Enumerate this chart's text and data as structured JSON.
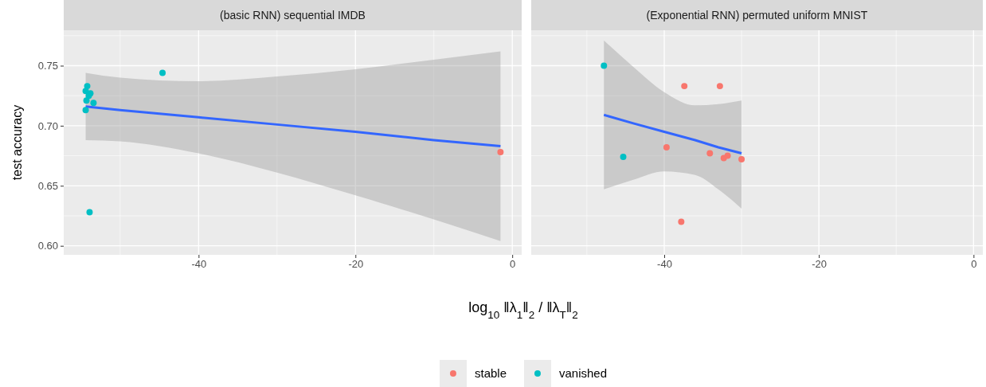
{
  "chart_data": [
    {
      "type": "scatter",
      "title": "(basic RNN) sequential IMDB",
      "xlabel": "log$_{10}$ ‖λ$_{1}$‖$_{2}$ / ‖λ$_{T}$‖$_{2}$",
      "ylabel": "test accuracy",
      "xlim": [
        -57.2,
        1.2
      ],
      "xticks": [
        -40,
        -20,
        0
      ],
      "ylim": [
        0.5925,
        0.7795
      ],
      "yticks": [
        {
          "value": 0.6,
          "label": "0.60"
        },
        {
          "value": 0.65,
          "label": "0.65"
        },
        {
          "value": 0.7,
          "label": "0.70"
        },
        {
          "value": 0.75,
          "label": "0.75"
        }
      ],
      "grid": true,
      "legend": "bottom",
      "series": [
        {
          "name": "stable",
          "color": "#f8766d",
          "marker": "circle",
          "x": [
            -1.5
          ],
          "values": [
            0.678
          ]
        },
        {
          "name": "vanished",
          "color": "#00bfc4",
          "marker": "circle",
          "x": [
            -54.2,
            -54.4,
            -53.8,
            -54.0,
            -54.3,
            -53.4,
            -54.4,
            -53.9,
            -44.6
          ],
          "values": [
            0.733,
            0.729,
            0.727,
            0.725,
            0.721,
            0.719,
            0.713,
            0.628,
            0.744
          ]
        },
        {
          "type": "line",
          "color": "#3366ff",
          "marker": "none",
          "x": [
            -54.4,
            -50,
            -40,
            -30,
            -20,
            -10,
            -1.5
          ],
          "values": [
            0.716,
            0.713,
            0.707,
            0.701,
            0.695,
            0.688,
            0.683
          ],
          "lower": [
            0.688,
            0.687,
            0.677,
            0.661,
            0.642,
            0.622,
            0.604
          ],
          "upper": [
            0.744,
            0.74,
            0.737,
            0.741,
            0.747,
            0.755,
            0.762
          ]
        }
      ]
    },
    {
      "type": "scatter",
      "title": "(Exponential RNN) permuted uniform MNIST",
      "xlim": [
        -57.2,
        1.2
      ],
      "xticks": [
        -40,
        -20,
        0
      ],
      "ylim": [
        0.5925,
        0.7795
      ],
      "yticks": [
        0.6,
        0.65,
        0.7,
        0.75
      ],
      "tick_labels": "x",
      "grid": true,
      "legend": "bottom",
      "series": [
        {
          "name": "stable",
          "color": "#f8766d",
          "marker": "circle",
          "x": [
            -37.4,
            -32.8,
            -39.7,
            -34.1,
            -32.3,
            -31.8,
            -30.0,
            -37.8
          ],
          "values": [
            0.733,
            0.733,
            0.682,
            0.677,
            0.673,
            0.675,
            0.672,
            0.62
          ]
        },
        {
          "name": "vanished",
          "color": "#00bfc4",
          "marker": "circle",
          "x": [
            -47.8,
            -45.3
          ],
          "values": [
            0.75,
            0.674
          ]
        },
        {
          "type": "line",
          "color": "#3366ff",
          "marker": "none",
          "x": [
            -47.8,
            -44,
            -40,
            -36,
            -33,
            -30
          ],
          "values": [
            0.709,
            0.702,
            0.695,
            0.688,
            0.682,
            0.677
          ],
          "lower": [
            0.647,
            0.655,
            0.662,
            0.659,
            0.647,
            0.631
          ],
          "upper": [
            0.771,
            0.749,
            0.728,
            0.717,
            0.718,
            0.721
          ]
        }
      ]
    }
  ]
}
